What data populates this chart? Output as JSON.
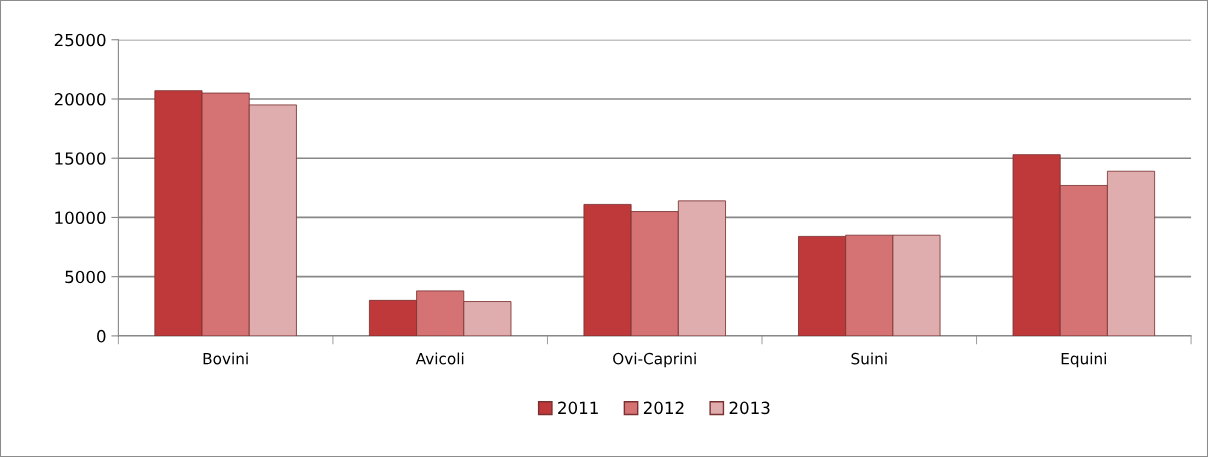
{
  "chart_data": {
    "type": "bar",
    "categories": [
      "Bovini",
      "Avicoli",
      "Ovi-Caprini",
      "Suini",
      "Equini"
    ],
    "series": [
      {
        "name": "2011",
        "color": "#c0393a",
        "values": [
          20700,
          3000,
          11100,
          8400,
          15300
        ]
      },
      {
        "name": "2012",
        "color": "#d57273",
        "values": [
          20500,
          3800,
          10500,
          8500,
          12700
        ]
      },
      {
        "name": "2013",
        "color": "#dfadad",
        "values": [
          19500,
          2900,
          11400,
          8500,
          13900
        ]
      }
    ],
    "ylim": [
      0,
      25000
    ],
    "yticks": [
      0,
      5000,
      10000,
      15000,
      20000,
      25000
    ],
    "grid": "y",
    "legend": "bottom"
  }
}
